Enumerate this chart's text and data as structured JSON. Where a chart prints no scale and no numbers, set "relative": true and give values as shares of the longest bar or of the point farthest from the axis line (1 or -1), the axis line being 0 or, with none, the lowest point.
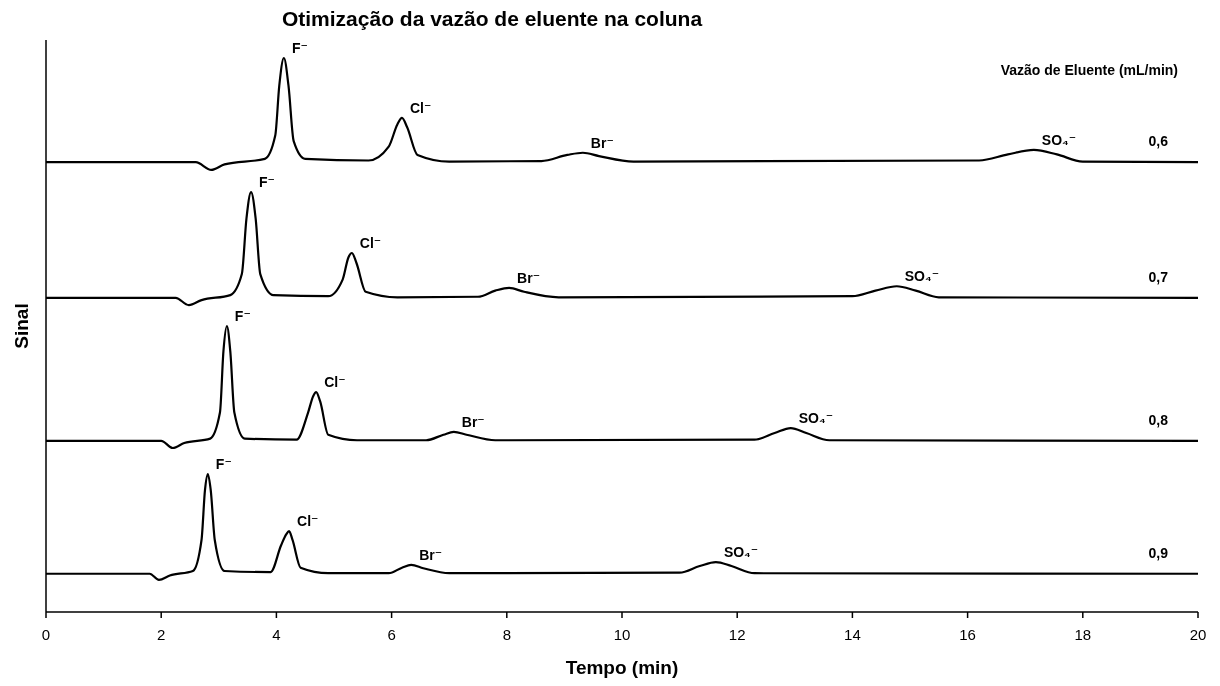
{
  "chart_data": {
    "type": "line",
    "title": "Otimização  da vazão de eluente na coluna",
    "xlabel": "Tempo (min)",
    "ylabel": "Sinal",
    "legend_title": "Vazão de Eluente (mL/min)",
    "relative": true,
    "xlim": [
      0,
      20
    ],
    "xticks": [
      0,
      2,
      4,
      6,
      8,
      10,
      12,
      14,
      16,
      18,
      20
    ],
    "marker": "none",
    "line_style": "solid",
    "series": [
      {
        "name": "0,6",
        "color": "#000000",
        "x": [
          0,
          2.6,
          2.87,
          3.1,
          3.8,
          3.98,
          4.05,
          4.13,
          4.21,
          4.3,
          4.5,
          5.6,
          5.95,
          6.1,
          6.18,
          6.27,
          6.45,
          7.0,
          8.6,
          9.05,
          9.32,
          9.6,
          10.2,
          16.2,
          16.7,
          17.15,
          17.55,
          18,
          20
        ],
        "values": [
          0.812,
          0.812,
          0.798,
          0.808,
          0.818,
          0.86,
          0.95,
          1.0,
          0.95,
          0.85,
          0.818,
          0.815,
          0.84,
          0.88,
          0.892,
          0.875,
          0.825,
          0.813,
          0.814,
          0.825,
          0.829,
          0.823,
          0.813,
          0.815,
          0.826,
          0.834,
          0.826,
          0.813,
          0.812
        ]
      },
      {
        "name": "0,7",
        "color": "#000000",
        "x": [
          0,
          2.25,
          2.48,
          2.7,
          3.2,
          3.4,
          3.48,
          3.56,
          3.64,
          3.72,
          3.95,
          4.9,
          5.15,
          5.25,
          5.31,
          5.39,
          5.55,
          6.1,
          7.5,
          7.8,
          8.04,
          8.3,
          8.9,
          14.0,
          14.4,
          14.77,
          15.1,
          15.5,
          20
        ],
        "values": [
          0.567,
          0.567,
          0.554,
          0.563,
          0.572,
          0.61,
          0.71,
          0.758,
          0.71,
          0.61,
          0.572,
          0.57,
          0.6,
          0.64,
          0.648,
          0.63,
          0.578,
          0.568,
          0.569,
          0.58,
          0.585,
          0.578,
          0.568,
          0.57,
          0.58,
          0.588,
          0.58,
          0.568,
          0.567
        ]
      },
      {
        "name": "0,8",
        "color": "#000000",
        "x": [
          0,
          2.0,
          2.2,
          2.4,
          2.85,
          3.02,
          3.08,
          3.14,
          3.2,
          3.27,
          3.45,
          4.35,
          4.55,
          4.64,
          4.69,
          4.76,
          4.9,
          5.4,
          6.6,
          6.9,
          7.08,
          7.3,
          7.8,
          12.3,
          12.65,
          12.93,
          13.2,
          13.6,
          20
        ],
        "values": [
          0.309,
          0.309,
          0.296,
          0.305,
          0.313,
          0.36,
          0.47,
          0.516,
          0.47,
          0.36,
          0.313,
          0.311,
          0.36,
          0.39,
          0.397,
          0.38,
          0.32,
          0.31,
          0.31,
          0.32,
          0.325,
          0.32,
          0.31,
          0.311,
          0.323,
          0.332,
          0.323,
          0.31,
          0.309
        ]
      },
      {
        "name": "0,9",
        "color": "#000000",
        "x": [
          0,
          1.8,
          1.96,
          2.15,
          2.55,
          2.7,
          2.76,
          2.81,
          2.86,
          2.93,
          3.1,
          3.9,
          4.08,
          4.17,
          4.22,
          4.28,
          4.42,
          4.9,
          5.95,
          6.18,
          6.34,
          6.55,
          7.0,
          11.0,
          11.35,
          11.63,
          11.9,
          12.3,
          20
        ],
        "values": [
          0.069,
          0.069,
          0.058,
          0.066,
          0.074,
          0.13,
          0.22,
          0.249,
          0.22,
          0.13,
          0.074,
          0.072,
          0.12,
          0.14,
          0.146,
          0.13,
          0.08,
          0.07,
          0.07,
          0.08,
          0.085,
          0.079,
          0.07,
          0.071,
          0.083,
          0.09,
          0.083,
          0.07,
          0.069
        ]
      }
    ],
    "annotations": [
      {
        "text": "F⁻",
        "x": 4.13,
        "y": 1.0
      },
      {
        "text": "Cl⁻",
        "x": 6.18,
        "y": 0.892
      },
      {
        "text": "Br⁻",
        "x": 9.32,
        "y": 0.829
      },
      {
        "text": "SO₄⁻",
        "x": 17.15,
        "y": 0.834
      },
      {
        "text": "F⁻",
        "x": 3.56,
        "y": 0.758
      },
      {
        "text": "Cl⁻",
        "x": 5.31,
        "y": 0.648
      },
      {
        "text": "Br⁻",
        "x": 8.04,
        "y": 0.585
      },
      {
        "text": "SO₄⁻",
        "x": 14.77,
        "y": 0.588
      },
      {
        "text": "F⁻",
        "x": 3.14,
        "y": 0.516
      },
      {
        "text": "Cl⁻",
        "x": 4.69,
        "y": 0.397
      },
      {
        "text": "Br⁻",
        "x": 7.08,
        "y": 0.325
      },
      {
        "text": "SO₄⁻",
        "x": 12.93,
        "y": 0.332
      },
      {
        "text": "F⁻",
        "x": 2.81,
        "y": 0.249
      },
      {
        "text": "Cl⁻",
        "x": 4.22,
        "y": 0.146
      },
      {
        "text": "Br⁻",
        "x": 6.34,
        "y": 0.085
      },
      {
        "text": "SO₄⁻",
        "x": 11.63,
        "y": 0.09
      }
    ]
  }
}
